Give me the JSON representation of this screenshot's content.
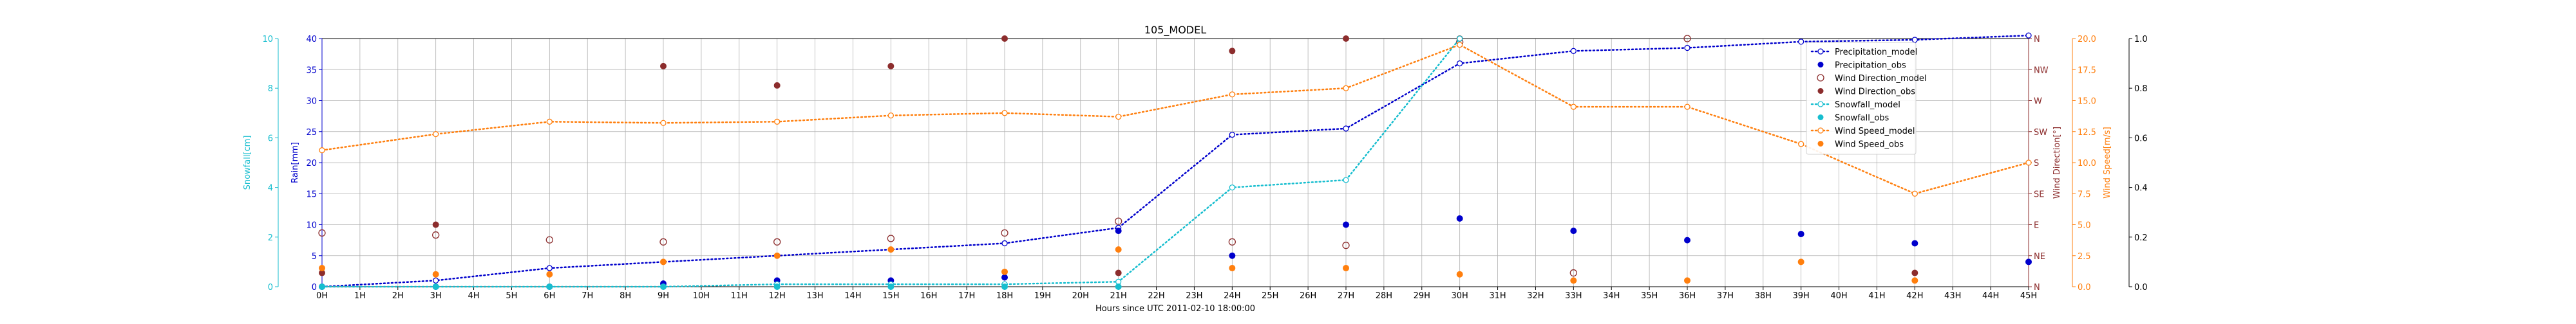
{
  "chart_data": {
    "type": "line",
    "title": "105_MODEL",
    "xlabel": "Hours since UTC 2011-02-10 18:00:00",
    "x_ticks": [
      "0H",
      "1H",
      "2H",
      "3H",
      "4H",
      "5H",
      "6H",
      "7H",
      "8H",
      "9H",
      "10H",
      "11H",
      "12H",
      "13H",
      "14H",
      "15H",
      "16H",
      "17H",
      "18H",
      "19H",
      "20H",
      "21H",
      "22H",
      "23H",
      "24H",
      "25H",
      "26H",
      "27H",
      "28H",
      "29H",
      "30H",
      "31H",
      "32H",
      "33H",
      "34H",
      "35H",
      "36H",
      "37H",
      "38H",
      "39H",
      "40H",
      "41H",
      "42H",
      "43H",
      "44H",
      "45H"
    ],
    "xlim": [
      0,
      45
    ],
    "grid": true,
    "legend_position": "top-right",
    "axes": {
      "rain": {
        "label": "Rain[mm]",
        "range": [
          0,
          40
        ],
        "ticks": [
          0,
          5,
          10,
          15,
          20,
          25,
          30,
          35,
          40
        ],
        "color": "#0000cc"
      },
      "snow": {
        "label": "Snowfall[cm]",
        "range": [
          0,
          10
        ],
        "ticks": [
          0,
          2,
          4,
          6,
          8,
          10
        ],
        "color": "#17becf"
      },
      "wind_dir": {
        "label": "Wind Direction[°]",
        "range": [
          0,
          360
        ],
        "tick_values": [
          0,
          45,
          90,
          135,
          180,
          225,
          270,
          315,
          360
        ],
        "tick_labels": [
          "N",
          "NE",
          "E",
          "SE",
          "S",
          "SW",
          "W",
          "NW",
          "N"
        ],
        "color": "#8c2d2d"
      },
      "wind_speed": {
        "label": "Wind Speed[m/s]",
        "range": [
          0,
          20
        ],
        "ticks": [
          "0.0",
          "2.5",
          "5.0",
          "7.5",
          "10.0",
          "12.5",
          "15.0",
          "17.5",
          "20.0"
        ],
        "color": "#ff7f0e"
      },
      "extra": {
        "range": [
          0,
          1
        ],
        "ticks": [
          "0.0",
          "0.2",
          "0.4",
          "0.6",
          "0.8",
          "1.0"
        ],
        "color": "#000000"
      }
    },
    "series": [
      {
        "name": "Precipitation_model",
        "axis": "rain",
        "style": "line-open",
        "color": "#0000cc",
        "x": [
          0,
          3,
          6,
          9,
          12,
          15,
          18,
          21,
          24,
          27,
          30,
          33,
          36,
          39,
          42,
          45
        ],
        "y": [
          0,
          1,
          3,
          4,
          5,
          6,
          7,
          9.5,
          24.5,
          25.5,
          36,
          38,
          38.5,
          39.5,
          39.8,
          40.5
        ]
      },
      {
        "name": "Precipitation_obs",
        "axis": "rain",
        "style": "dot",
        "color": "#0000cc",
        "x": [
          0,
          3,
          6,
          9,
          12,
          15,
          18,
          21,
          24,
          27,
          30,
          33,
          36,
          39,
          42,
          45
        ],
        "y": [
          0,
          0,
          0,
          0.5,
          1,
          1,
          1.5,
          9,
          5,
          10,
          11,
          9,
          7.5,
          8.5,
          7,
          4
        ]
      },
      {
        "name": "Wind Direction_model",
        "axis": "wind_dir",
        "style": "open",
        "color": "#8c2d2d",
        "x": [
          0,
          3,
          6,
          9,
          12,
          15,
          18,
          21,
          24,
          27,
          30,
          33,
          36
        ],
        "y": [
          78,
          75,
          68,
          65,
          65,
          70,
          78,
          95,
          65,
          60,
          355,
          20,
          360
        ]
      },
      {
        "name": "Wind Direction_obs",
        "axis": "wind_dir",
        "style": "dot",
        "color": "#8c2d2d",
        "x": [
          0,
          3,
          9,
          12,
          15,
          18,
          21,
          24,
          27,
          30,
          42
        ],
        "y": [
          20,
          90,
          320,
          292,
          320,
          360,
          20,
          342,
          360,
          360,
          20
        ]
      },
      {
        "name": "Snowfall_model",
        "axis": "snow",
        "style": "line-open",
        "color": "#17becf",
        "x": [
          0,
          3,
          6,
          9,
          12,
          15,
          18,
          21,
          24,
          27,
          30
        ],
        "y": [
          0,
          0,
          0,
          0,
          0.1,
          0.1,
          0.1,
          0.2,
          4,
          4.3,
          10
        ]
      },
      {
        "name": "Snowfall_obs",
        "axis": "snow",
        "style": "dot",
        "color": "#17becf",
        "x": [
          0,
          3,
          6,
          9,
          12,
          15,
          18,
          21
        ],
        "y": [
          0,
          0,
          0,
          0,
          0,
          0,
          0,
          0
        ]
      },
      {
        "name": "Wind Speed_model",
        "axis": "wind_speed",
        "style": "line-open",
        "color": "#ff7f0e",
        "x": [
          0,
          3,
          6,
          9,
          12,
          15,
          18,
          21,
          24,
          27,
          30,
          33,
          36,
          39,
          42,
          45
        ],
        "y": [
          11,
          12.3,
          13.3,
          13.2,
          13.3,
          13.8,
          14,
          13.7,
          15.5,
          16,
          19.5,
          14.5,
          14.5,
          11.5,
          7.5,
          10
        ]
      },
      {
        "name": "Wind Speed_obs",
        "axis": "wind_speed",
        "style": "dot",
        "color": "#ff7f0e",
        "x": [
          0,
          3,
          6,
          9,
          12,
          15,
          18,
          21,
          24,
          27,
          30,
          33,
          36,
          39,
          42
        ],
        "y": [
          1.5,
          1,
          1,
          2,
          2.5,
          3,
          1.2,
          3,
          1.5,
          1.5,
          1,
          0.5,
          0.5,
          2,
          0.5
        ]
      }
    ]
  }
}
